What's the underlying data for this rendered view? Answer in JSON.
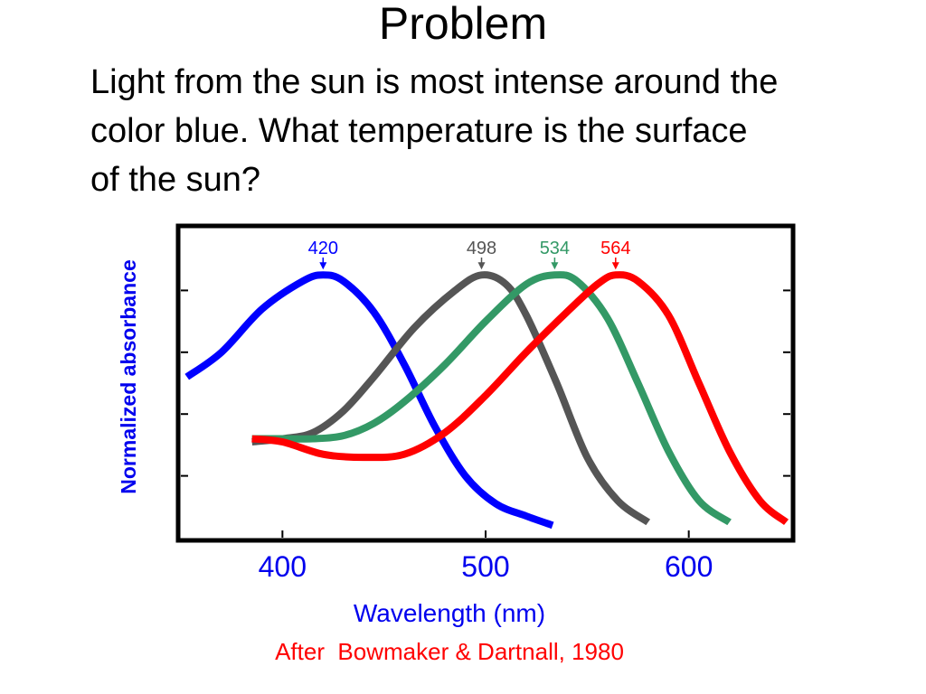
{
  "slide": {
    "title": "Problem",
    "body_lines": [
      "Light from the sun is most intense around the",
      "color blue.  What temperature is the surface",
      "of the sun?"
    ]
  },
  "chart_data": {
    "type": "line",
    "title": "",
    "xlabel": "Wavelength (nm)",
    "ylabel": "Normalized absorbance",
    "xlim": [
      350,
      650
    ],
    "ylim": [
      0,
      1.0
    ],
    "x_ticks": [
      400,
      500,
      600
    ],
    "x_tick_labels": [
      "400",
      "500",
      "600"
    ],
    "credit": "After  Bowmaker & Dartnall, 1980",
    "colors": {
      "title": "#000000",
      "axis_label": "#0000ee",
      "credit": "#ff0000",
      "frame": "#000000"
    },
    "series": [
      {
        "name": "420",
        "peak": 420,
        "color": "#0000ff",
        "points": [
          [
            353,
            0.52
          ],
          [
            370,
            0.6
          ],
          [
            390,
            0.74
          ],
          [
            410,
            0.83
          ],
          [
            420,
            0.85
          ],
          [
            430,
            0.83
          ],
          [
            445,
            0.73
          ],
          [
            460,
            0.56
          ],
          [
            475,
            0.36
          ],
          [
            490,
            0.2
          ],
          [
            505,
            0.11
          ],
          [
            520,
            0.07
          ],
          [
            533,
            0.04
          ]
        ]
      },
      {
        "name": "498",
        "peak": 498,
        "color": "#555555",
        "points": [
          [
            385,
            0.31
          ],
          [
            400,
            0.32
          ],
          [
            415,
            0.34
          ],
          [
            430,
            0.41
          ],
          [
            445,
            0.52
          ],
          [
            465,
            0.68
          ],
          [
            485,
            0.8
          ],
          [
            498,
            0.85
          ],
          [
            510,
            0.82
          ],
          [
            520,
            0.72
          ],
          [
            535,
            0.5
          ],
          [
            550,
            0.26
          ],
          [
            565,
            0.12
          ],
          [
            580,
            0.05
          ]
        ]
      },
      {
        "name": "534",
        "peak": 534,
        "color": "#339966",
        "points": [
          [
            385,
            0.32
          ],
          [
            400,
            0.32
          ],
          [
            415,
            0.32
          ],
          [
            430,
            0.33
          ],
          [
            445,
            0.37
          ],
          [
            460,
            0.44
          ],
          [
            480,
            0.56
          ],
          [
            500,
            0.7
          ],
          [
            520,
            0.82
          ],
          [
            534,
            0.85
          ],
          [
            545,
            0.83
          ],
          [
            560,
            0.71
          ],
          [
            575,
            0.5
          ],
          [
            590,
            0.28
          ],
          [
            605,
            0.12
          ],
          [
            620,
            0.05
          ]
        ]
      },
      {
        "name": "564",
        "peak": 564,
        "color": "#ff0000",
        "points": [
          [
            385,
            0.32
          ],
          [
            400,
            0.31
          ],
          [
            420,
            0.27
          ],
          [
            440,
            0.26
          ],
          [
            460,
            0.27
          ],
          [
            480,
            0.34
          ],
          [
            500,
            0.46
          ],
          [
            520,
            0.6
          ],
          [
            540,
            0.73
          ],
          [
            555,
            0.82
          ],
          [
            564,
            0.85
          ],
          [
            575,
            0.83
          ],
          [
            590,
            0.72
          ],
          [
            605,
            0.5
          ],
          [
            620,
            0.28
          ],
          [
            635,
            0.12
          ],
          [
            648,
            0.05
          ]
        ]
      }
    ]
  }
}
